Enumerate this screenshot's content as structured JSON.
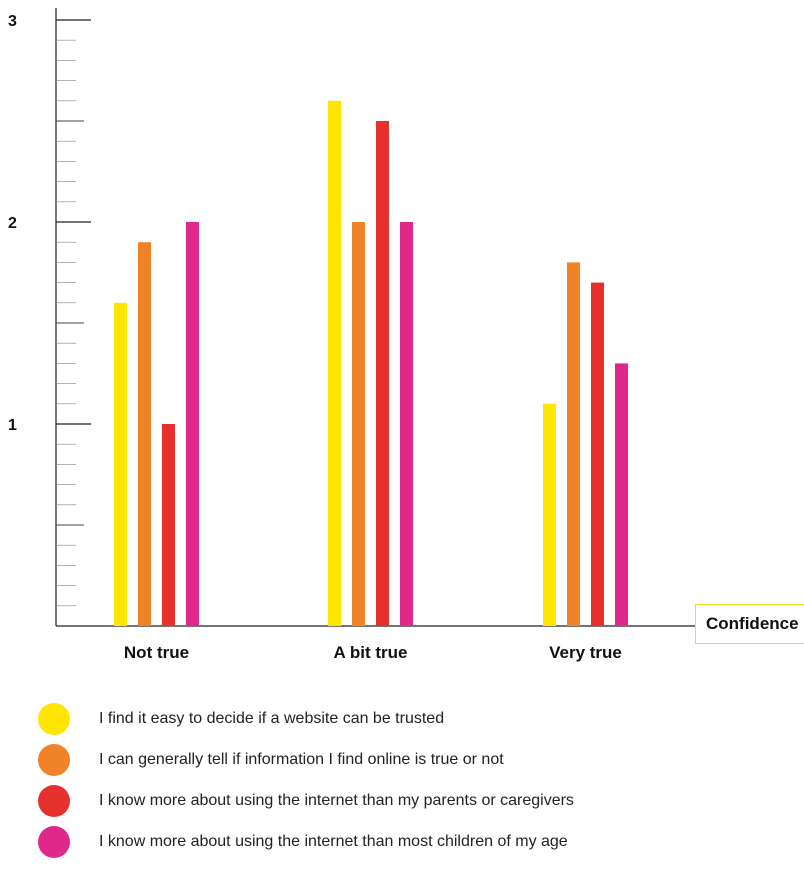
{
  "chart_data": {
    "type": "bar",
    "title": "",
    "xlabel": "Confidence",
    "ylabel": "",
    "ylim": [
      0,
      3
    ],
    "yticks": [
      "1",
      "2",
      "3"
    ],
    "grid": false,
    "legend_position": "bottom",
    "categories": [
      "Not true",
      "A bit true",
      "Very true"
    ],
    "series": [
      {
        "name": "I find it easy to decide if a website can be trusted",
        "color": "#ffe500",
        "values": [
          1.6,
          2.6,
          1.1
        ]
      },
      {
        "name": "I can generally tell if information I find online is true or not",
        "color": "#f08228",
        "values": [
          1.9,
          2.0,
          1.8
        ]
      },
      {
        "name": "I know more about using the internet than my parents or caregivers",
        "color": "#e5302c",
        "values": [
          1.0,
          2.5,
          1.7
        ]
      },
      {
        "name": "I know more about using the internet than most children of my age",
        "color": "#e0288a",
        "values": [
          2.0,
          2.0,
          1.3
        ]
      }
    ]
  }
}
